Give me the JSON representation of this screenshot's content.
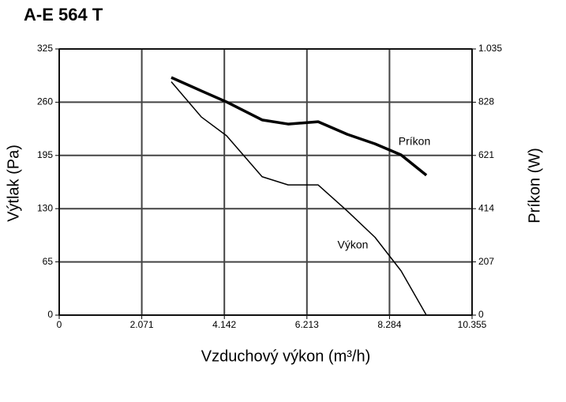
{
  "chart_data": {
    "type": "line",
    "title": "A-E 564 T",
    "x_label": "Vzduchový výkon (m³/h)",
    "y_label": "Výtlak (Pa)",
    "y2_label": "Príkon (W)",
    "x": [
      2811,
      3564,
      4198,
      5089,
      5742,
      6495,
      7228,
      7921,
      8575,
      9209
    ],
    "series": [
      {
        "name": "Výkon",
        "color": "#000000",
        "values": [
          285,
          242,
          219,
          169,
          159,
          159,
          127,
          95,
          54,
          0
        ]
      },
      {
        "name": "Príkon",
        "color": "#000000",
        "axis": "y2",
        "values": [
          924,
          872,
          829,
          759,
          743,
          752,
          703,
          666,
          623,
          544
        ]
      }
    ],
    "xlim": [
      0,
      10355
    ],
    "xticks": [
      0,
      {
        "value": 2071,
        "label": "2.071"
      },
      {
        "value": 4142,
        "label": "4.142"
      },
      {
        "value": 6213,
        "label": "6.213"
      },
      {
        "value": 8284,
        "label": "8.284"
      },
      {
        "value": 10355,
        "label": "10.355"
      }
    ],
    "ylim": [
      0,
      325
    ],
    "yticks": [
      0,
      65,
      130,
      195,
      260,
      325
    ],
    "y2lim": [
      0,
      1035
    ],
    "y2ticks": [
      0,
      207,
      414,
      621,
      {
        "value": 828,
        "label": "828"
      },
      {
        "value": 1035,
        "label": "1.035"
      }
    ],
    "grid": true
  }
}
